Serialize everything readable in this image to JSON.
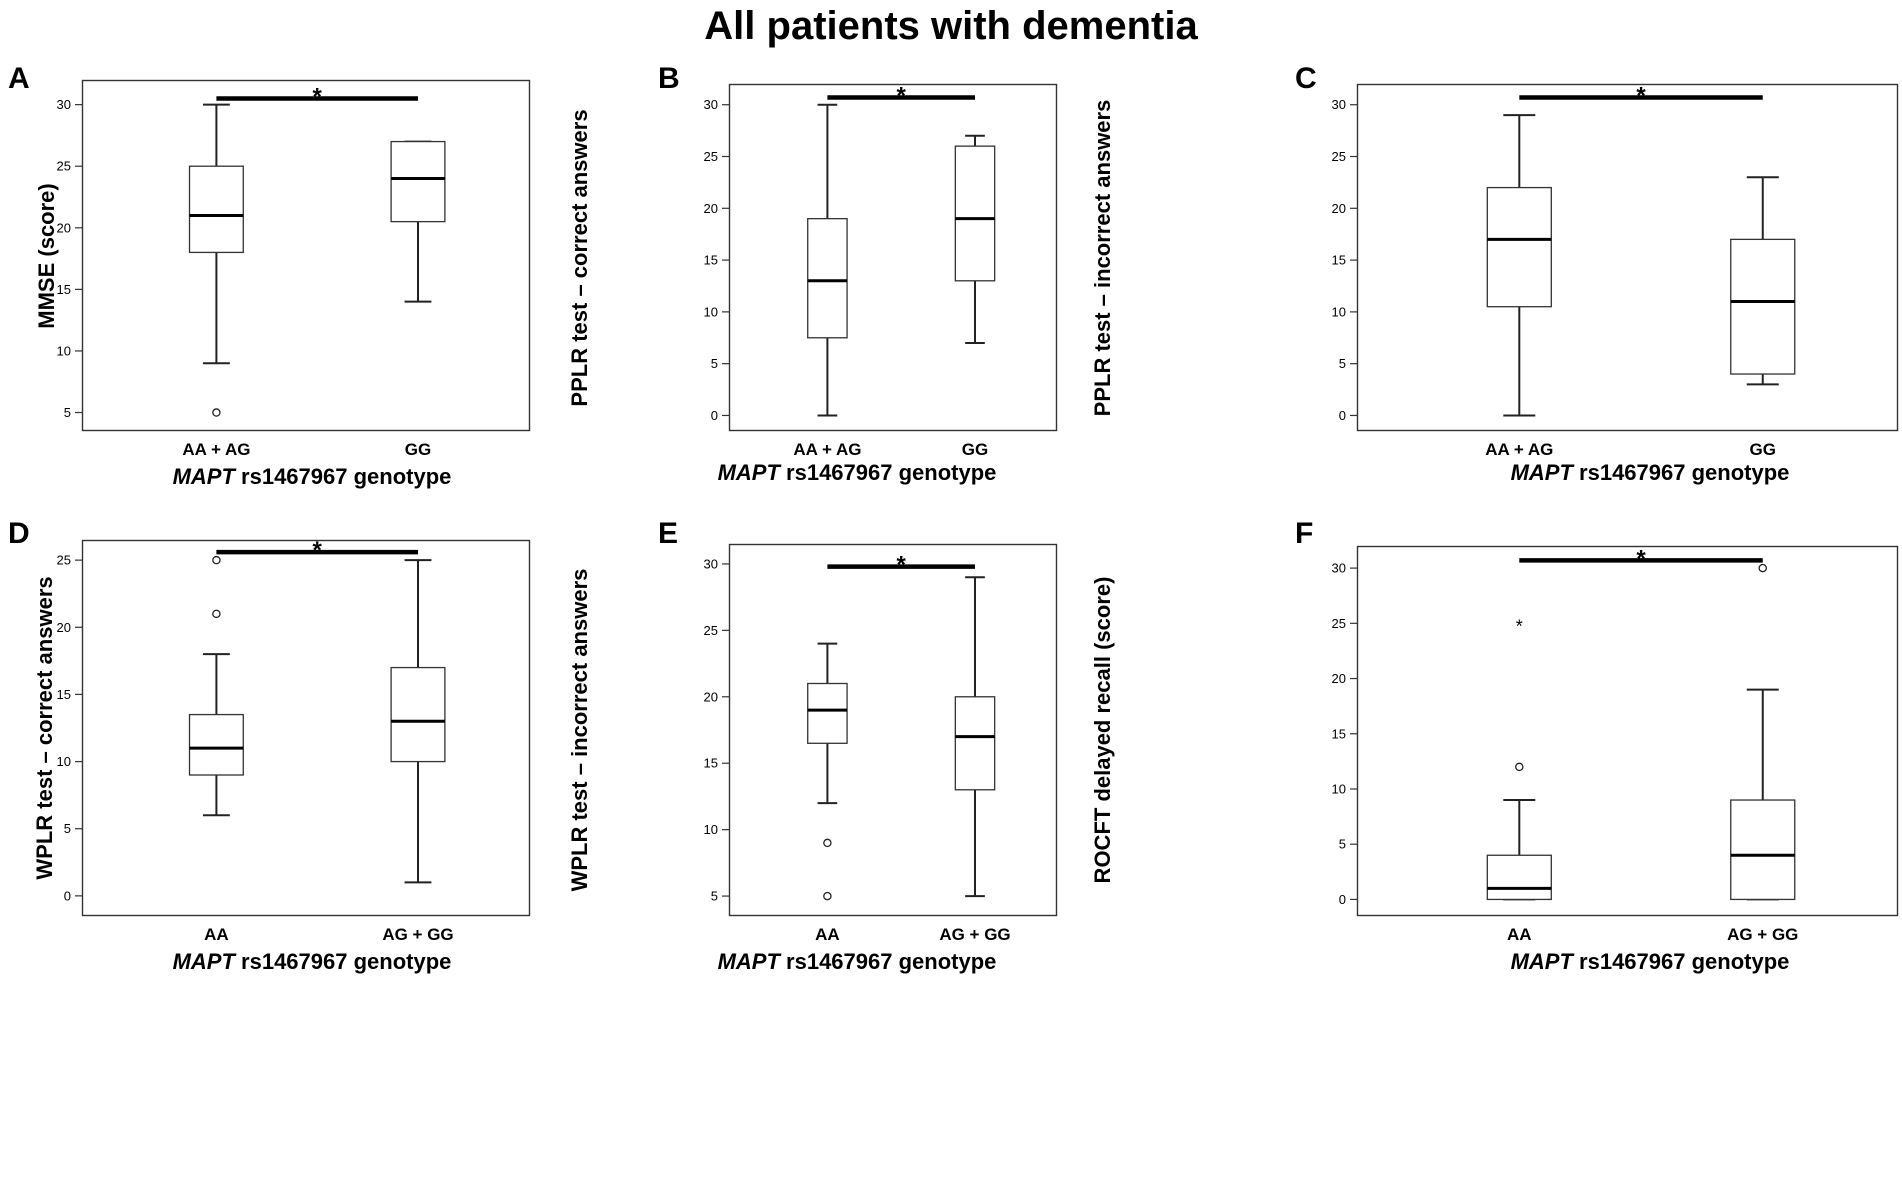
{
  "title": "All patients with dementia",
  "chart_data": [
    {
      "type": "boxplot",
      "panel": "A",
      "ylabel": "MMSE (score)",
      "xlabel_gene": "MAPT",
      "xlabel_rest": " rs1467967 genotype",
      "ylim": [
        3.5,
        32
      ],
      "yticks": [
        5,
        10,
        15,
        20,
        25,
        30
      ],
      "significance": "*",
      "sig_y": 30.5,
      "groups": [
        {
          "label": "AA + AG",
          "min": 9,
          "q1": 18,
          "median": 21,
          "q3": 25,
          "max": 30,
          "outliers": [
            5
          ],
          "extremes": []
        },
        {
          "label": "GG",
          "min": 14,
          "q1": 20.5,
          "median": 24,
          "q3": 27,
          "max": 27,
          "outliers": [],
          "extremes": []
        }
      ]
    },
    {
      "type": "boxplot",
      "panel": "B",
      "ylabel": "PPLR test – correct answers",
      "xlabel_gene": "MAPT",
      "xlabel_rest": " rs1467967 genotype",
      "ylim": [
        -1.5,
        32
      ],
      "yticks": [
        0,
        5,
        10,
        15,
        20,
        25,
        30
      ],
      "significance": "*",
      "sig_y": 30.7,
      "groups": [
        {
          "label": "AA + AG",
          "min": 0,
          "q1": 7.5,
          "median": 13,
          "q3": 19,
          "max": 30,
          "outliers": [],
          "extremes": []
        },
        {
          "label": "GG",
          "min": 7,
          "q1": 13,
          "median": 19,
          "q3": 26,
          "max": 27,
          "outliers": [],
          "extremes": []
        }
      ]
    },
    {
      "type": "boxplot",
      "panel": "C",
      "ylabel": "PPLR test – incorrect answers",
      "xlabel_gene": "MAPT",
      "xlabel_rest": " rs1467967 genotype",
      "ylim": [
        -1.5,
        32
      ],
      "yticks": [
        0,
        5,
        10,
        15,
        20,
        25,
        30
      ],
      "ytick_labels": [
        "0",
        "5",
        "10",
        "15",
        "20",
        "25",
        "30"
      ],
      "significance": "*",
      "sig_y": 30.7,
      "groups": [
        {
          "label": "AA + AG",
          "min": 0,
          "q1": 10.5,
          "median": 17,
          "q3": 22,
          "max": 29,
          "outliers": [],
          "extremes": []
        },
        {
          "label": "GG",
          "min": 3,
          "q1": 4,
          "median": 11,
          "q3": 17,
          "max": 23,
          "outliers": [],
          "extremes": []
        }
      ]
    },
    {
      "type": "boxplot",
      "panel": "D",
      "ylabel": "WPLR test – correct answers",
      "xlabel_gene": "MAPT",
      "xlabel_rest": " rs1467967 genotype",
      "ylim": [
        -1.5,
        26.5
      ],
      "yticks": [
        0,
        5,
        10,
        15,
        20,
        25
      ],
      "significance": "*",
      "sig_y": 25.6,
      "groups": [
        {
          "label": "AA",
          "min": 6,
          "q1": 9,
          "median": 11,
          "q3": 13.5,
          "max": 18,
          "outliers": [
            21,
            25
          ],
          "extremes": []
        },
        {
          "label": "AG + GG",
          "min": 1,
          "q1": 10,
          "median": 13,
          "q3": 17,
          "max": 25,
          "outliers": [],
          "extremes": []
        }
      ]
    },
    {
      "type": "boxplot",
      "panel": "E",
      "ylabel": "WPLR test – incorrect answers",
      "xlabel_gene": "MAPT",
      "xlabel_rest": " rs1467967 genotype",
      "ylim": [
        3.5,
        31.5
      ],
      "yticks": [
        5,
        10,
        15,
        20,
        25,
        30
      ],
      "significance": "*",
      "sig_y": 29.8,
      "groups": [
        {
          "label": "AA",
          "min": 12,
          "q1": 16.5,
          "median": 19,
          "q3": 21,
          "max": 24,
          "outliers": [
            9,
            5
          ],
          "extremes": []
        },
        {
          "label": "AG + GG",
          "min": 5,
          "q1": 13,
          "median": 17,
          "q3": 20,
          "max": 29,
          "outliers": [],
          "extremes": []
        }
      ]
    },
    {
      "type": "boxplot",
      "panel": "F",
      "ylabel": "ROCFT delayed recall (score)",
      "xlabel_gene": "MAPT",
      "xlabel_rest": " rs1467967 genotype",
      "ylim": [
        -1.5,
        32
      ],
      "yticks": [
        0,
        5,
        10,
        15,
        20,
        25,
        30
      ],
      "significance": "*",
      "sig_y": 30.7,
      "groups": [
        {
          "label": "AA",
          "min": 0,
          "q1": 0,
          "median": 1,
          "q3": 4,
          "max": 9,
          "outliers": [
            12
          ],
          "extremes": [
            25
          ]
        },
        {
          "label": "AG + GG",
          "min": 0,
          "q1": 0,
          "median": 4,
          "q3": 9,
          "max": 19,
          "outliers": [
            30
          ],
          "extremes": []
        }
      ]
    }
  ]
}
